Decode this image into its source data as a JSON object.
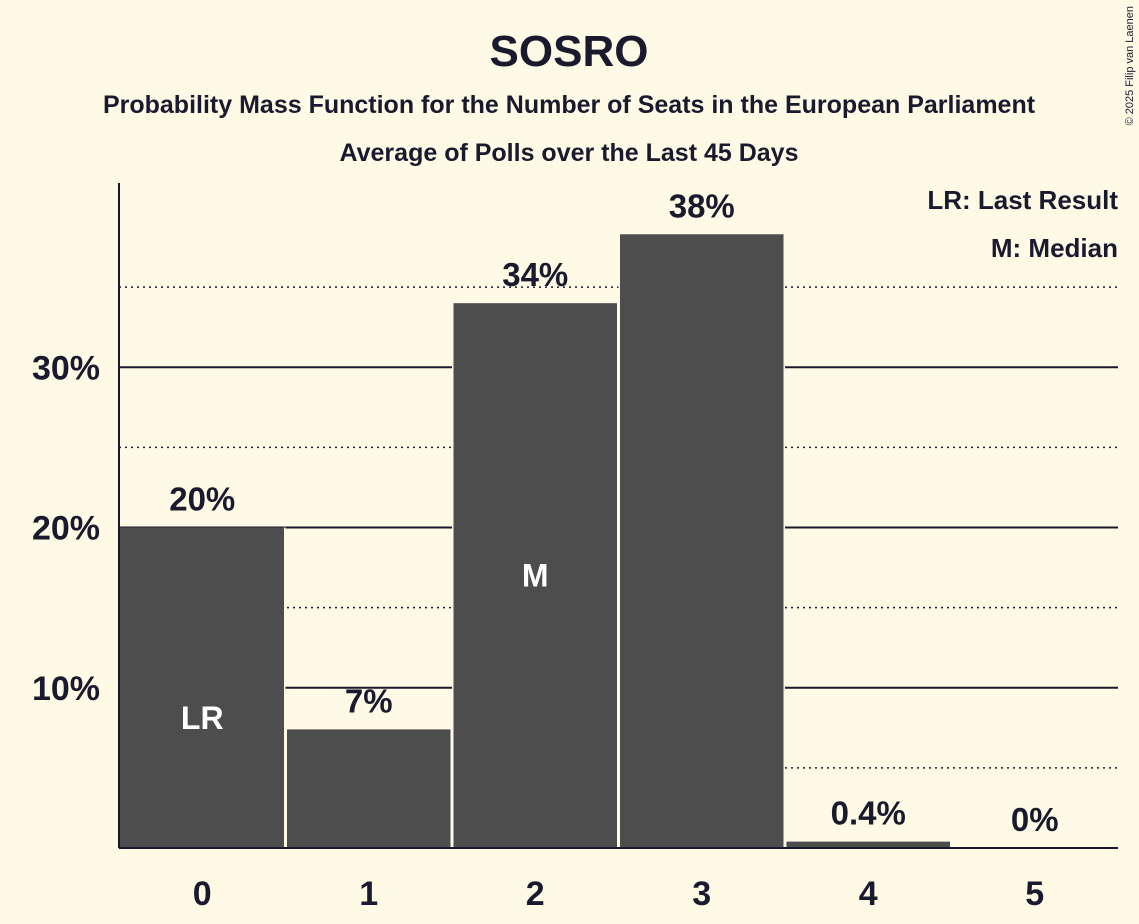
{
  "copyright": "© 2025 Filip van Laenen",
  "chart_data": {
    "type": "bar",
    "title": "SOSRO",
    "subtitle": "Probability Mass Function for the Number of Seats in the European Parliament",
    "subtitle2": "Average of Polls over the Last 45 Days",
    "categories": [
      "0",
      "1",
      "2",
      "3",
      "4",
      "5"
    ],
    "values": [
      20,
      7.4,
      34,
      38.3,
      0.4,
      0
    ],
    "value_labels": [
      "20%",
      "7%",
      "34%",
      "38%",
      "0.4%",
      "0%"
    ],
    "in_bar_labels": [
      "LR",
      "",
      "M",
      "",
      "",
      ""
    ],
    "ylim": [
      0,
      41.5
    ],
    "yticks": [
      10,
      20,
      30
    ],
    "ytick_labels": [
      "10%",
      "20%",
      "30%"
    ],
    "dotted_gridlines": [
      5,
      15,
      25,
      35
    ],
    "legend": [
      "LR: Last Result",
      "M: Median"
    ],
    "legend_position": "top-right",
    "bar_color": "#4d4d4d",
    "background_color": "#fffae6"
  }
}
